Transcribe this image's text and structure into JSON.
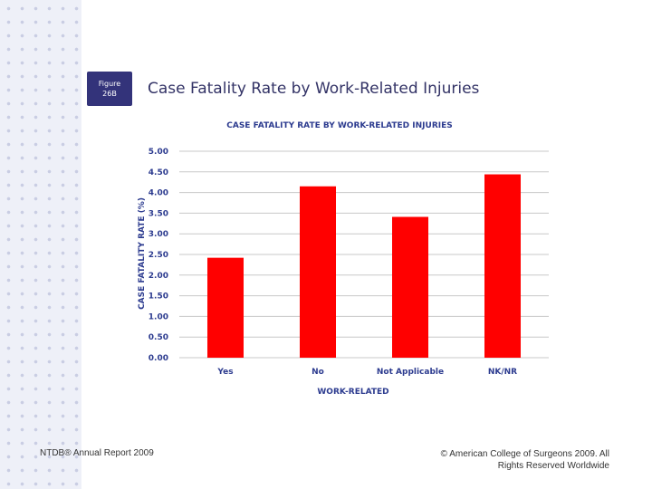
{
  "slide": {
    "badge_line1": "Figure",
    "badge_line2": "26B",
    "title": "Case Fatality Rate by Work-Related Injuries",
    "footer_left": "NTDB® Annual Report 2009",
    "footer_right": "© American College of Surgeons 2009. All Rights Reserved Worldwide"
  },
  "colors": {
    "bar": "#ff0000",
    "chart_text": "#2c3b8f",
    "title_text": "#333366",
    "badge_bg": "#33337a"
  },
  "chart_data": {
    "type": "bar",
    "title": "CASE FATALITY RATE BY WORK-RELATED INJURIES",
    "xlabel": "WORK-RELATED",
    "ylabel": "CASE FATALITY RATE (%)",
    "categories": [
      "Yes",
      "No",
      "Not Applicable",
      "NK/NR"
    ],
    "values": [
      2.42,
      4.15,
      3.41,
      4.44
    ],
    "ylim": [
      0,
      5
    ],
    "yticks": [
      "0.00",
      "0.50",
      "1.00",
      "1.50",
      "2.00",
      "2.50",
      "3.00",
      "3.50",
      "4.00",
      "4.50",
      "5.00"
    ],
    "grid": true,
    "legend": "none"
  }
}
